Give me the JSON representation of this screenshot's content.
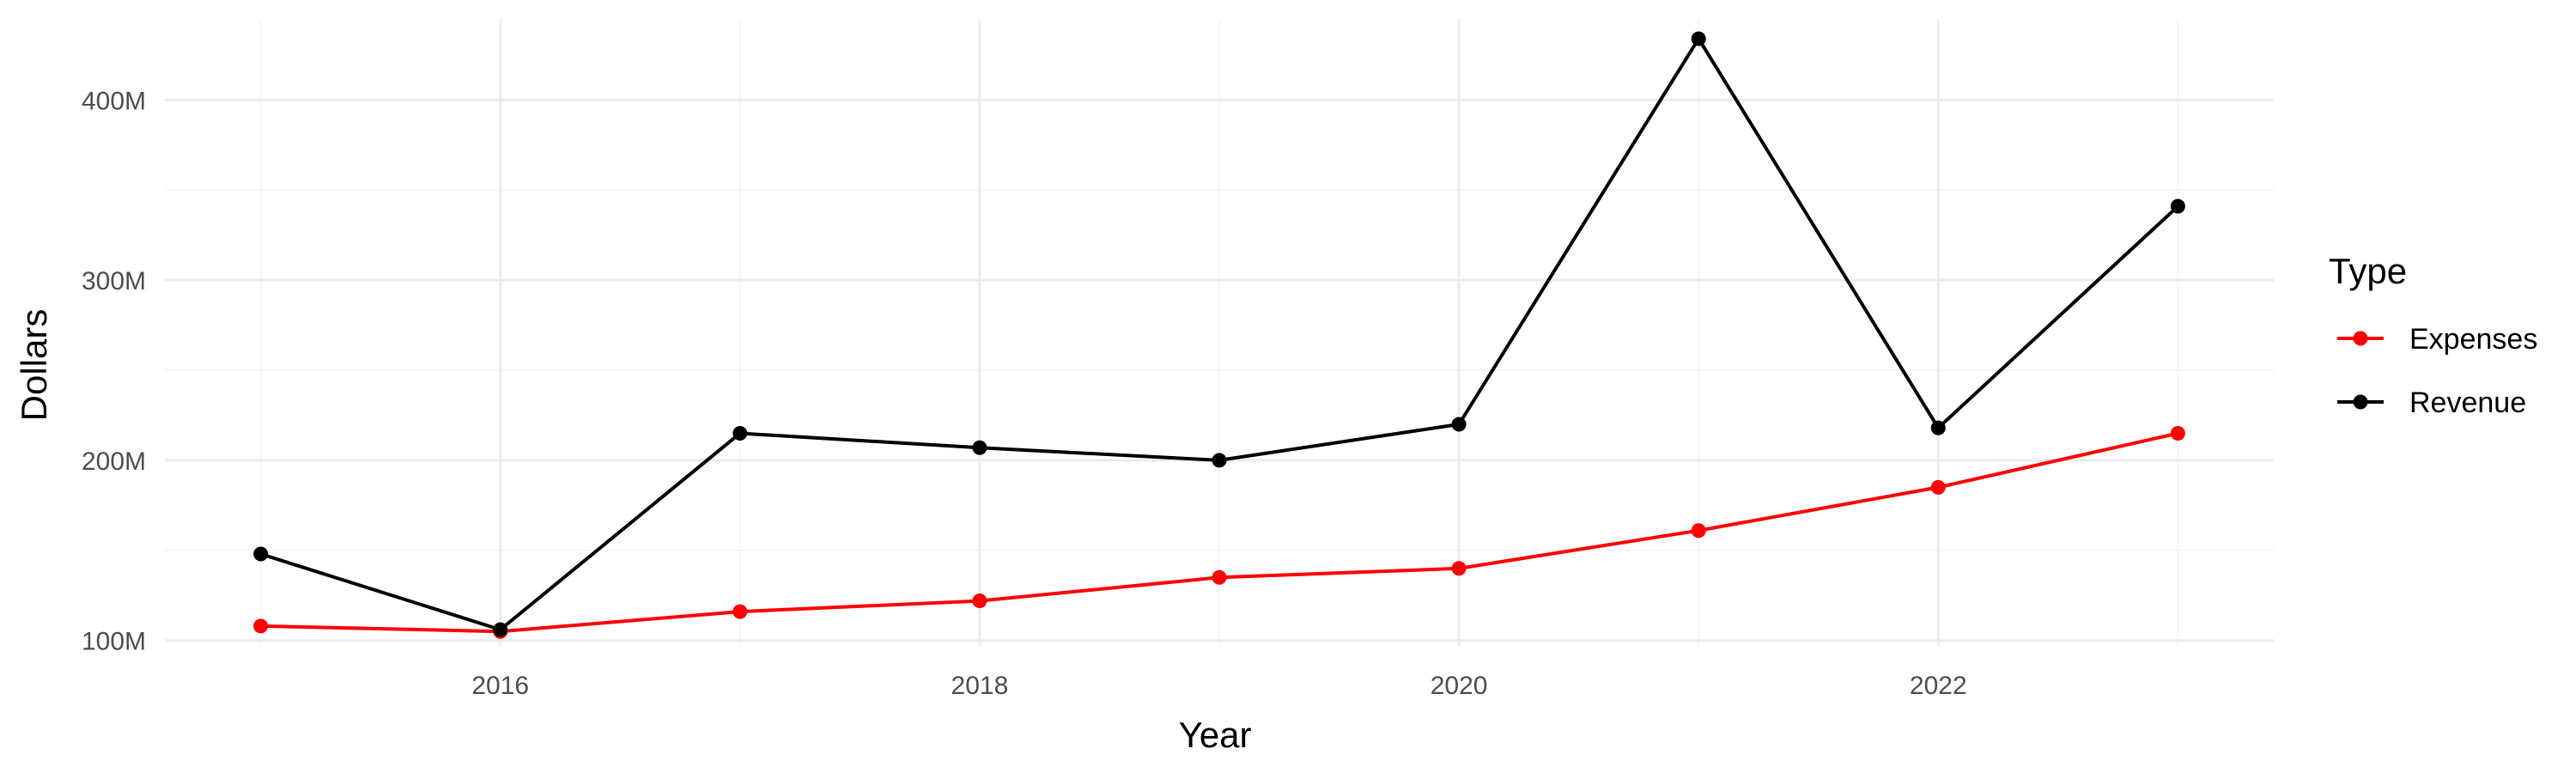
{
  "chart_data": {
    "type": "line",
    "title": "",
    "xlabel": "Year",
    "ylabel": "Dollars",
    "x": [
      2015,
      2016,
      2017,
      2018,
      2019,
      2020,
      2021,
      2022,
      2023
    ],
    "xlim": [
      2014.6,
      2023.4
    ],
    "ylim": [
      97,
      445
    ],
    "x_ticks": [
      2016,
      2018,
      2020,
      2022
    ],
    "x_tick_labels": [
      "2016",
      "2018",
      "2020",
      "2022"
    ],
    "y_ticks": [
      100,
      200,
      300,
      400
    ],
    "y_tick_labels": [
      "100M",
      "200M",
      "300M",
      "400M"
    ],
    "y_unit": "millions of dollars",
    "grid": true,
    "legend": {
      "title": "Type",
      "position": "right",
      "entries": [
        "Expenses",
        "Revenue"
      ]
    },
    "series": [
      {
        "name": "Expenses",
        "color": "#ff0000",
        "values": [
          108,
          105,
          116,
          122,
          135,
          140,
          161,
          185,
          215
        ]
      },
      {
        "name": "Revenue",
        "color": "#000000",
        "values": [
          148,
          106,
          215,
          207,
          200,
          220,
          434,
          218,
          341
        ]
      }
    ]
  }
}
